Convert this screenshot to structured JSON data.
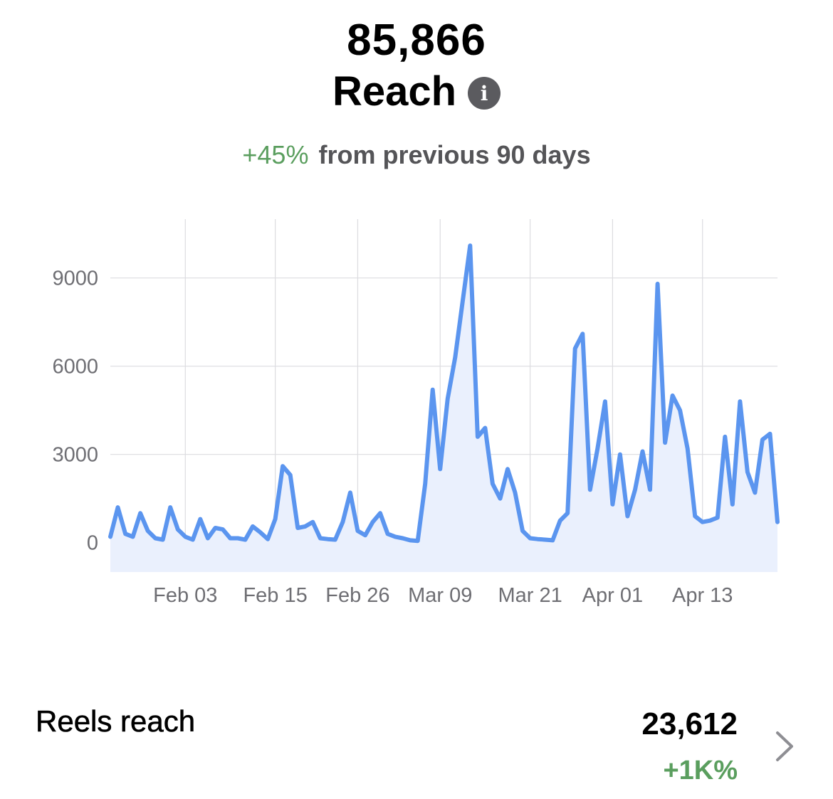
{
  "header": {
    "value": "85,866",
    "title": "Reach",
    "delta_positive": "+45%",
    "delta_text": "from previous 90 days"
  },
  "colors": {
    "line": "#5b95ef",
    "fill": "#eaf0fd",
    "positive": "#5a9e5e",
    "grid": "#dcdce0"
  },
  "icons": {
    "info": "info-icon",
    "chevron": "chevron-right-icon"
  },
  "chart_data": {
    "type": "area",
    "title": "",
    "xlabel": "",
    "ylabel": "",
    "ylim": [
      -1000,
      11000
    ],
    "yticks": [
      0,
      3000,
      6000,
      9000
    ],
    "ytick_labels": [
      "0",
      "3000",
      "6000",
      "9000"
    ],
    "x_start": "Jan 24",
    "xticks": [
      10,
      22,
      33,
      44,
      56,
      67,
      79
    ],
    "xtick_labels": [
      "Feb 03",
      "Feb 15",
      "Feb 26",
      "Mar 09",
      "Mar 21",
      "Apr 01",
      "Apr 13"
    ],
    "grid": true,
    "legend": "none",
    "series": [
      {
        "name": "",
        "values": [
          200,
          1200,
          300,
          200,
          1000,
          400,
          150,
          100,
          1200,
          450,
          200,
          100,
          800,
          150,
          500,
          450,
          150,
          150,
          100,
          550,
          350,
          120,
          800,
          2600,
          2300,
          500,
          550,
          700,
          150,
          120,
          100,
          700,
          1700,
          400,
          250,
          700,
          1000,
          300,
          200,
          150,
          80,
          60,
          2000,
          5200,
          2500,
          4900,
          6300,
          8200,
          10100,
          3600,
          3900,
          2000,
          1500,
          2500,
          1700,
          400,
          150,
          120,
          100,
          80,
          750,
          1000,
          6600,
          7100,
          1800,
          3200,
          4800,
          1300,
          3000,
          900,
          1800,
          3100,
          1800,
          8800,
          3400,
          5000,
          4500,
          3200,
          900,
          700,
          750,
          850,
          3600,
          1300,
          4800,
          2400,
          1700,
          3500,
          3700,
          700
        ]
      }
    ]
  },
  "reels": {
    "label": "Reels reach",
    "value": "23,612",
    "delta": "+1K%"
  }
}
